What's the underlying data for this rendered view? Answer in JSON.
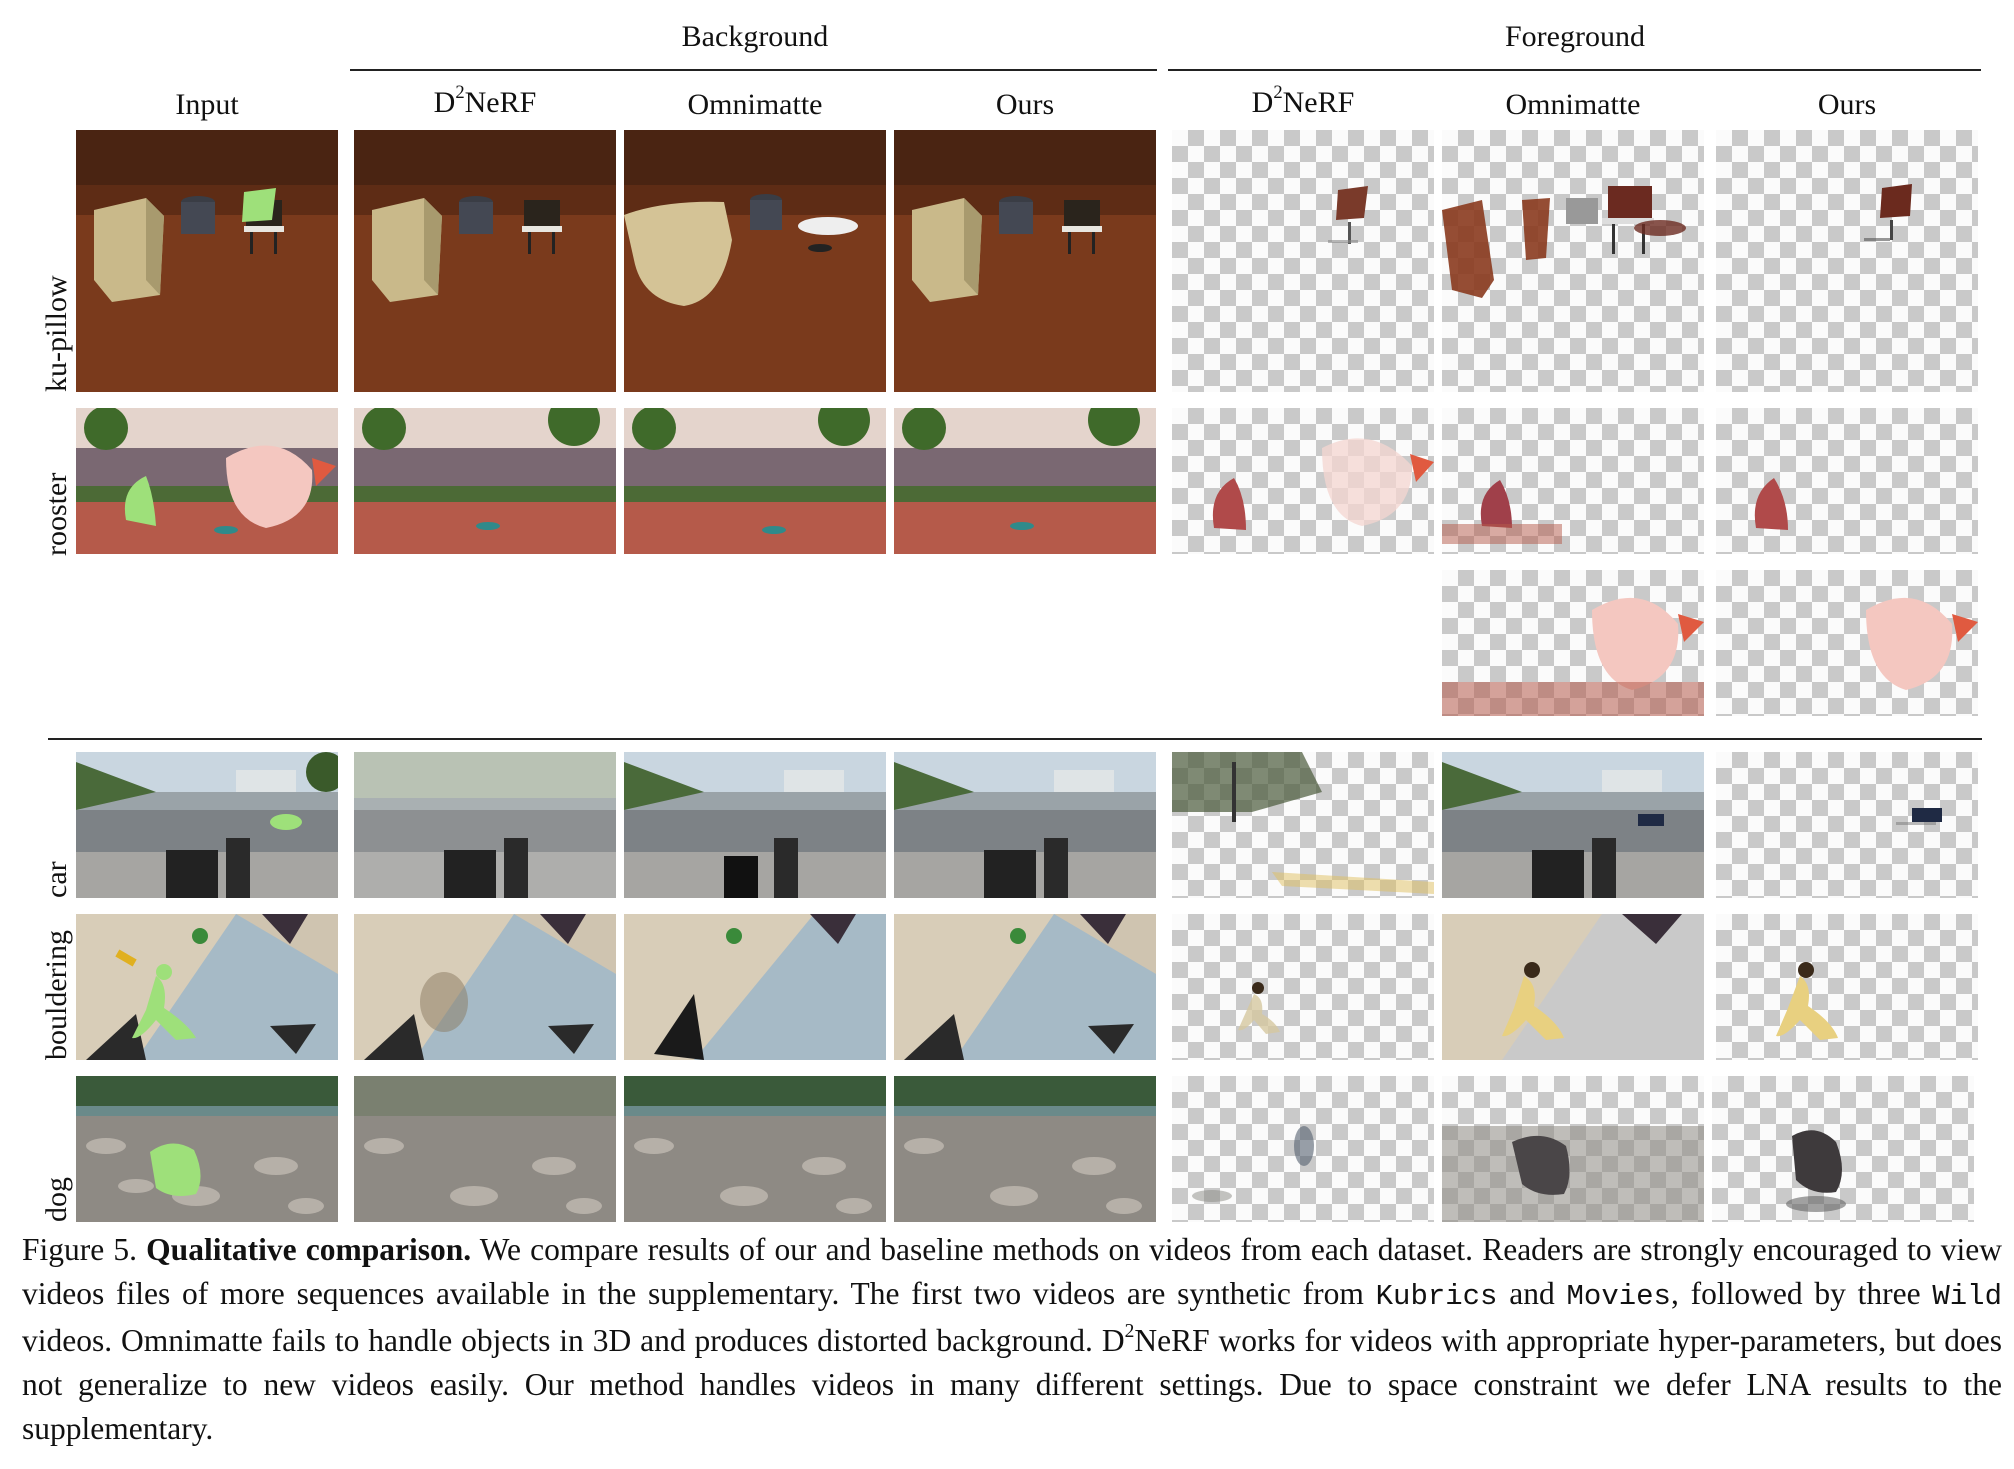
{
  "groups": {
    "background": "Background",
    "foreground": "Foreground"
  },
  "columns": {
    "input": "Input",
    "d2nerf_prefix": "D",
    "d2nerf_sup": "2",
    "d2nerf_suffix": "NeRF",
    "omnimatte": "Omnimatte",
    "ours": "Ours"
  },
  "rows": {
    "ku_pillow": "ku-pillow",
    "rooster": "rooster",
    "car": "car",
    "bouldering": "bouldering",
    "dog": "dog"
  },
  "caption": {
    "label": "Figure 5.",
    "bold": "Qualitative comparison.",
    "t1": " We compare results of our and baseline methods on videos from each dataset. Readers are strongly encouraged to view videos files of more sequences available in the supplementary. The first two videos are synthetic from ",
    "m1": "Kubrics",
    "t2": " and ",
    "m2": "Movies",
    "t3": ", followed by three ",
    "m3": "Wild",
    "t4": " videos. Omnimatte fails to handle objects in 3D and produces distorted background. D",
    "sup": "2",
    "t5": "NeRF works for videos with appropriate hyper-parameters, but does not generalize to new videos easily. Our method handles videos in many different settings. Due to space constraint we defer LNA results to the supplementary."
  }
}
